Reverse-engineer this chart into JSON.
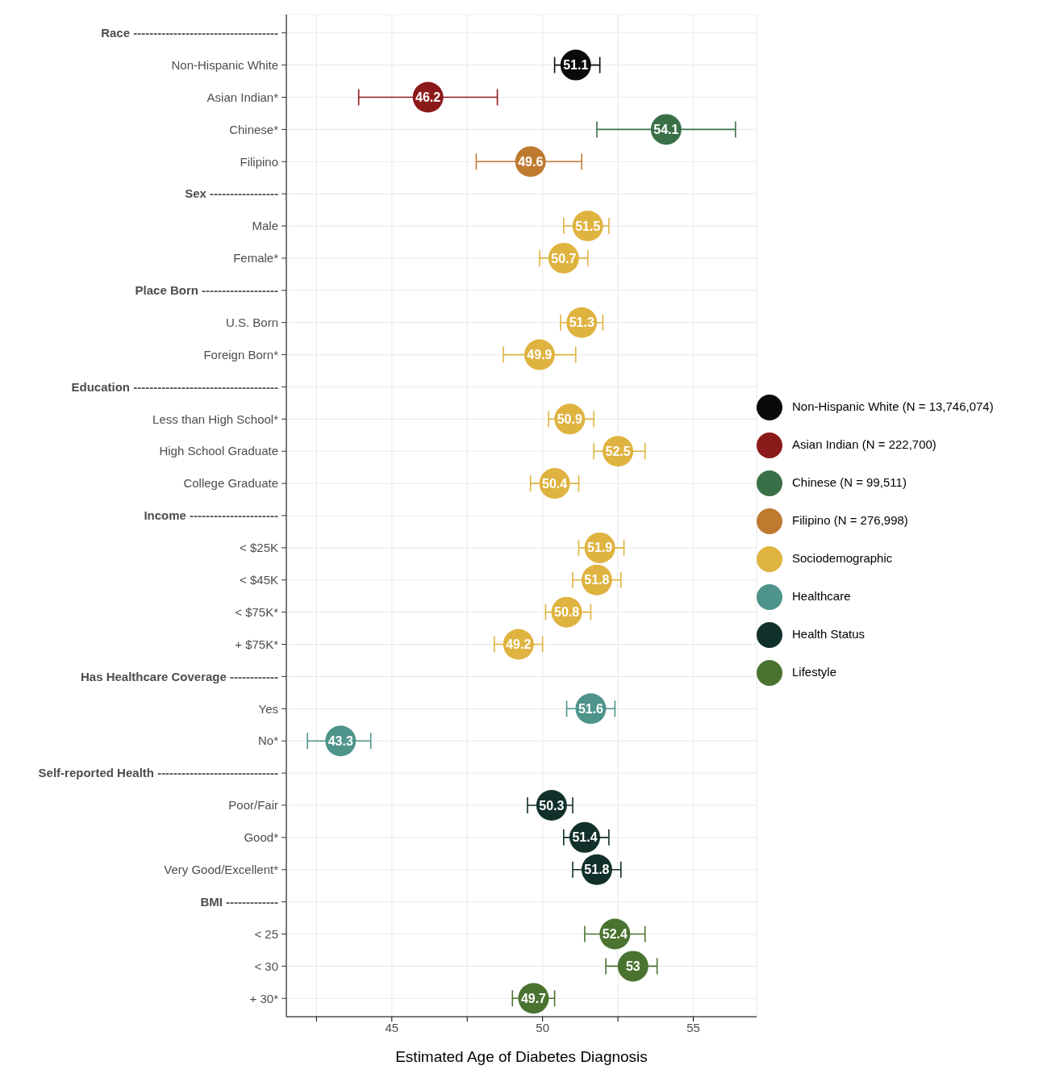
{
  "chart_data": {
    "type": "scatter",
    "orientation": "horizontal",
    "xlabel": "Estimated Age of Diabetes Diagnosis",
    "categories": [
      "Race ------------------------------------",
      "Non-Hispanic White",
      "Asian Indian*",
      "Chinese*",
      "Filipino",
      "Sex -----------------",
      "Male",
      "Female*",
      "Place Born -------------------",
      "U.S. Born",
      "Foreign Born*",
      "Education ------------------------------------",
      "Less than High School*",
      "High School Graduate",
      "College Graduate",
      "Income ----------------------",
      "< $25K",
      "< $45K",
      "< $75K*",
      "+ $75K*",
      "Has Healthcare Coverage ------------",
      "Yes",
      "No*",
      "Self-reported Health ------------------------------",
      "Poor/Fair",
      "Good*",
      "Very Good/Excellent*",
      "BMI -------------",
      "< 25",
      "< 30",
      "+ 30*"
    ],
    "xlim": [
      41.5,
      57.1
    ],
    "xticks": [
      {
        "value": 42.5,
        "label": null
      },
      45,
      {
        "value": 47.5,
        "label": null
      },
      50,
      {
        "value": 52.5,
        "label": null
      },
      55
    ],
    "grid": true,
    "legend": "right",
    "marker": "circle",
    "data_labels": true,
    "series": [
      {
        "name": "Non-Hispanic White (N = 13,746,074)",
        "color": "#0a0a0a",
        "values": [
          null,
          51.1,
          null,
          null,
          null,
          null,
          null,
          null,
          null,
          null,
          null,
          null,
          null,
          null,
          null,
          null,
          null,
          null,
          null,
          null,
          null,
          null,
          null,
          null,
          null,
          null,
          null,
          null,
          null,
          null,
          null
        ],
        "errors": [
          null,
          [
            50.4,
            51.9
          ],
          null,
          null,
          null,
          null,
          null,
          null,
          null,
          null,
          null,
          null,
          null,
          null,
          null,
          null,
          null,
          null,
          null,
          null,
          null,
          null,
          null,
          null,
          null,
          null,
          null,
          null,
          null,
          null,
          null
        ]
      },
      {
        "name": "Asian Indian (N = 222,700)",
        "color": "#8b1a1a",
        "values": [
          null,
          null,
          46.2,
          null,
          null,
          null,
          null,
          null,
          null,
          null,
          null,
          null,
          null,
          null,
          null,
          null,
          null,
          null,
          null,
          null,
          null,
          null,
          null,
          null,
          null,
          null,
          null,
          null,
          null,
          null,
          null
        ],
        "errors": [
          null,
          null,
          [
            43.9,
            48.5
          ],
          null,
          null,
          null,
          null,
          null,
          null,
          null,
          null,
          null,
          null,
          null,
          null,
          null,
          null,
          null,
          null,
          null,
          null,
          null,
          null,
          null,
          null,
          null,
          null,
          null,
          null,
          null,
          null
        ]
      },
      {
        "name": "Chinese (N = 99,511)",
        "color": "#3a7048",
        "values": [
          null,
          null,
          null,
          54.1,
          null,
          null,
          null,
          null,
          null,
          null,
          null,
          null,
          null,
          null,
          null,
          null,
          null,
          null,
          null,
          null,
          null,
          null,
          null,
          null,
          null,
          null,
          null,
          null,
          null,
          null,
          null
        ],
        "errors": [
          null,
          null,
          null,
          [
            51.8,
            56.4
          ],
          null,
          null,
          null,
          null,
          null,
          null,
          null,
          null,
          null,
          null,
          null,
          null,
          null,
          null,
          null,
          null,
          null,
          null,
          null,
          null,
          null,
          null,
          null,
          null,
          null,
          null,
          null
        ]
      },
      {
        "name": "Filipino (N = 276,998)",
        "color": "#bf7a30",
        "values": [
          null,
          null,
          null,
          null,
          49.6,
          null,
          null,
          null,
          null,
          null,
          null,
          null,
          null,
          null,
          null,
          null,
          null,
          null,
          null,
          null,
          null,
          null,
          null,
          null,
          null,
          null,
          null,
          null,
          null,
          null,
          null
        ],
        "errors": [
          null,
          null,
          null,
          null,
          [
            47.8,
            51.3
          ],
          null,
          null,
          null,
          null,
          null,
          null,
          null,
          null,
          null,
          null,
          null,
          null,
          null,
          null,
          null,
          null,
          null,
          null,
          null,
          null,
          null,
          null,
          null,
          null,
          null,
          null
        ]
      },
      {
        "name": "Sociodemographic",
        "color": "#dfb340",
        "values": [
          null,
          null,
          null,
          null,
          null,
          null,
          51.5,
          50.7,
          null,
          51.3,
          49.9,
          null,
          50.9,
          52.5,
          50.4,
          null,
          51.9,
          51.8,
          50.8,
          49.2,
          null,
          null,
          null,
          null,
          null,
          null,
          null,
          null,
          null,
          null,
          null
        ],
        "errors": [
          null,
          null,
          null,
          null,
          null,
          null,
          [
            50.7,
            52.2
          ],
          [
            49.9,
            51.5
          ],
          null,
          [
            50.6,
            52.0
          ],
          [
            48.7,
            51.1
          ],
          null,
          [
            50.2,
            51.7
          ],
          [
            51.7,
            53.4
          ],
          [
            49.6,
            51.2
          ],
          null,
          [
            51.2,
            52.7
          ],
          [
            51.0,
            52.6
          ],
          [
            50.1,
            51.6
          ],
          [
            48.4,
            50.0
          ],
          null,
          null,
          null,
          null,
          null,
          null,
          null,
          null,
          null,
          null,
          null
        ]
      },
      {
        "name": "Healthcare",
        "color": "#4e948a",
        "values": [
          null,
          null,
          null,
          null,
          null,
          null,
          null,
          null,
          null,
          null,
          null,
          null,
          null,
          null,
          null,
          null,
          null,
          null,
          null,
          null,
          null,
          51.6,
          43.3,
          null,
          null,
          null,
          null,
          null,
          null,
          null,
          null
        ],
        "errors": [
          null,
          null,
          null,
          null,
          null,
          null,
          null,
          null,
          null,
          null,
          null,
          null,
          null,
          null,
          null,
          null,
          null,
          null,
          null,
          null,
          null,
          [
            50.8,
            52.4
          ],
          [
            42.2,
            44.3
          ],
          null,
          null,
          null,
          null,
          null,
          null,
          null,
          null
        ]
      },
      {
        "name": "Health Status",
        "color": "#11302a",
        "values": [
          null,
          null,
          null,
          null,
          null,
          null,
          null,
          null,
          null,
          null,
          null,
          null,
          null,
          null,
          null,
          null,
          null,
          null,
          null,
          null,
          null,
          null,
          null,
          null,
          50.3,
          51.4,
          51.8,
          null,
          null,
          null,
          null
        ],
        "errors": [
          null,
          null,
          null,
          null,
          null,
          null,
          null,
          null,
          null,
          null,
          null,
          null,
          null,
          null,
          null,
          null,
          null,
          null,
          null,
          null,
          null,
          null,
          null,
          null,
          [
            49.5,
            51.0
          ],
          [
            50.7,
            52.2
          ],
          [
            51.0,
            52.6
          ],
          null,
          null,
          null,
          null
        ]
      },
      {
        "name": "Lifestyle",
        "color": "#4a7330",
        "values": [
          null,
          null,
          null,
          null,
          null,
          null,
          null,
          null,
          null,
          null,
          null,
          null,
          null,
          null,
          null,
          null,
          null,
          null,
          null,
          null,
          null,
          null,
          null,
          null,
          null,
          null,
          null,
          null,
          52.4,
          53,
          49.7
        ],
        "errors": [
          null,
          null,
          null,
          null,
          null,
          null,
          null,
          null,
          null,
          null,
          null,
          null,
          null,
          null,
          null,
          null,
          null,
          null,
          null,
          null,
          null,
          null,
          null,
          null,
          null,
          null,
          null,
          null,
          [
            51.4,
            53.4
          ],
          [
            52.1,
            53.8
          ],
          [
            49.0,
            50.4
          ]
        ]
      }
    ]
  }
}
